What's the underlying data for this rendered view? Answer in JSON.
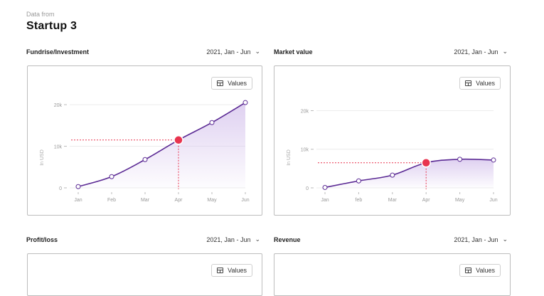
{
  "header": {
    "eyebrow": "Data from",
    "title": "Startup 3"
  },
  "colors": {
    "line": "#5b2a94",
    "area_top": "#d9c8ee",
    "highlight": "#e8344f",
    "grid": "#ececec"
  },
  "values_button_label": "Values",
  "values_button_icon": "table-icon",
  "range_chevron_icon": "chevron-down-icon",
  "sections": [
    {
      "title": "Fundrise/Investment",
      "range": "2021, Jan - Jun",
      "chart_key": 0
    },
    {
      "title": "Market value",
      "range": "2021, Jan - Jun",
      "chart_key": 1
    },
    {
      "title": "Profit/loss",
      "range": "2021, Jan - Jun"
    },
    {
      "title": "Revenue",
      "range": "2021, Jan - Jun"
    }
  ],
  "chart_data": [
    {
      "type": "area",
      "title": "Fundrise/Investment",
      "categories": [
        "Jan",
        "Feb",
        "Mar",
        "Apr",
        "May",
        "Jun"
      ],
      "values": [
        300,
        2700,
        6800,
        11500,
        15700,
        20500
      ],
      "highlight_index": 3,
      "ylabel": "In USD",
      "yticks": [
        0,
        10000,
        20000
      ],
      "ytick_labels": [
        "0",
        "10k",
        "20k"
      ],
      "ylim": [
        0,
        20700
      ]
    },
    {
      "type": "area",
      "title": "Market value",
      "categories": [
        "Jan",
        "feb",
        "Mar",
        "Apr",
        "May",
        "Jun"
      ],
      "values": [
        100,
        1800,
        3300,
        6500,
        7400,
        7200
      ],
      "highlight_index": 3,
      "ylabel": "In USD",
      "yticks": [
        0,
        10000,
        20000
      ],
      "ytick_labels": [
        "0",
        "10k",
        "20k"
      ],
      "ylim": [
        0,
        22300
      ]
    }
  ]
}
